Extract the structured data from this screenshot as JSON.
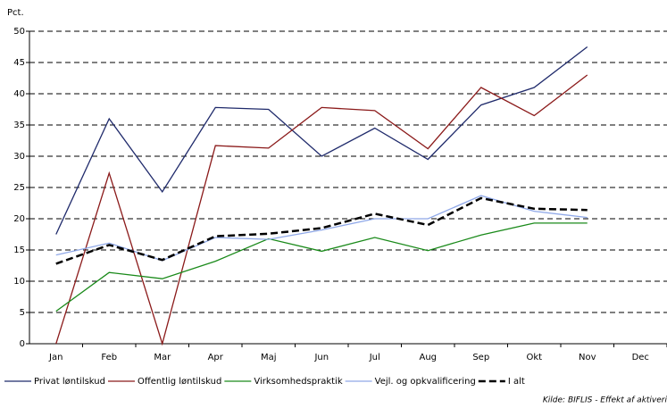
{
  "chart_data": {
    "type": "line",
    "y_label": "Pct.",
    "categories": [
      "Jan",
      "Feb",
      "Mar",
      "Apr",
      "Maj",
      "Jun",
      "Jul",
      "Aug",
      "Sep",
      "Okt",
      "Nov",
      "Dec"
    ],
    "series": [
      {
        "name": "Privat løntilskud",
        "color": "#1f2a6b",
        "values": [
          17.5,
          36,
          24.3,
          37.8,
          37.5,
          30,
          34.5,
          29.5,
          38.2,
          41,
          47.5,
          null
        ]
      },
      {
        "name": "Offentlig løntilskud",
        "color": "#8b1a1a",
        "values": [
          0,
          27.3,
          0,
          31.7,
          31.3,
          37.8,
          37.3,
          31.2,
          41,
          36.5,
          43,
          null
        ]
      },
      {
        "name": "Virksomhedspraktik",
        "color": "#1a8a1a",
        "values": [
          5.2,
          11.4,
          10.4,
          13.2,
          16.8,
          14.8,
          17,
          14.9,
          17.4,
          19.3,
          19.3,
          null
        ]
      },
      {
        "name": "Vejl. og opkvalificering",
        "color": "#8fa8e8",
        "values": [
          14.2,
          16.1,
          13.3,
          17,
          16.7,
          18.2,
          20,
          20,
          23.7,
          21.2,
          20.2,
          null
        ]
      },
      {
        "name": "I alt",
        "color": "#000000",
        "dashed": true,
        "values": [
          12.8,
          15.8,
          13.4,
          17.2,
          17.6,
          18.5,
          20.8,
          19,
          23.3,
          21.6,
          21.4,
          null
        ]
      }
    ],
    "ylim": [
      0,
      50
    ],
    "yticks": [
      0,
      5,
      10,
      15,
      20,
      25,
      30,
      35,
      40,
      45,
      50
    ],
    "grid": true,
    "source": "Kilde: BIFLIS - Effekt af aktiveri"
  }
}
